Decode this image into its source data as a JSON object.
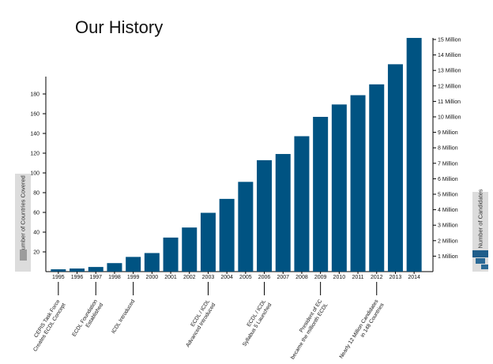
{
  "chart_data": {
    "type": "bar",
    "title": "Our History",
    "left_axis_label": "Number of Countries Covered",
    "right_axis_label": "Number of Candidates",
    "categories": [
      "1995",
      "1996",
      "1997",
      "1998",
      "1999",
      "2000",
      "2001",
      "2002",
      "2003",
      "2004",
      "2005",
      "2006",
      "2007",
      "2008",
      "2009",
      "2010",
      "2011",
      "2012",
      "2013",
      "2014"
    ],
    "values": [
      0.15,
      0.2,
      0.3,
      0.55,
      0.95,
      1.2,
      2.2,
      2.85,
      3.8,
      4.7,
      5.8,
      7.2,
      7.6,
      8.75,
      10.0,
      10.8,
      11.4,
      12.1,
      13.4,
      15.1
    ],
    "value_unit": "Million candidates",
    "left_ticks": [
      20,
      40,
      60,
      80,
      100,
      120,
      140,
      160,
      180
    ],
    "left_ylim": [
      0,
      200
    ],
    "right_ticks": [
      "1 Million",
      "2 Million",
      "3 Million",
      "4 Million",
      "5 Million",
      "6 Million",
      "7 Million",
      "8 Million",
      "9 Million",
      "10 Million",
      "11 Million",
      "12 Million",
      "13 Million",
      "14 Million",
      "15 Million"
    ],
    "right_ylim": [
      0,
      15
    ],
    "bar_color": "#005382",
    "annotations": [
      {
        "year": "1995",
        "lines": [
          "CEPIS Task Force",
          "Creates ECDL Concept"
        ]
      },
      {
        "year": "1997",
        "lines": [
          "ECDL Foundation",
          "Established"
        ]
      },
      {
        "year": "1999",
        "lines": [
          "ICDL Introduced"
        ]
      },
      {
        "year": "2003",
        "lines": [
          "ECDL / ICDL",
          "Advanced Introduced"
        ]
      },
      {
        "year": "2006",
        "lines": [
          "ECDL / ICDL",
          "Syllabus 5 Launched"
        ]
      },
      {
        "year": "2009",
        "lines": [
          "President of EC",
          "became the millionth ECDL"
        ]
      },
      {
        "year": "2012",
        "lines": [
          "Nearly 12 Million Candidates",
          "in 148 Countries"
        ]
      }
    ]
  }
}
